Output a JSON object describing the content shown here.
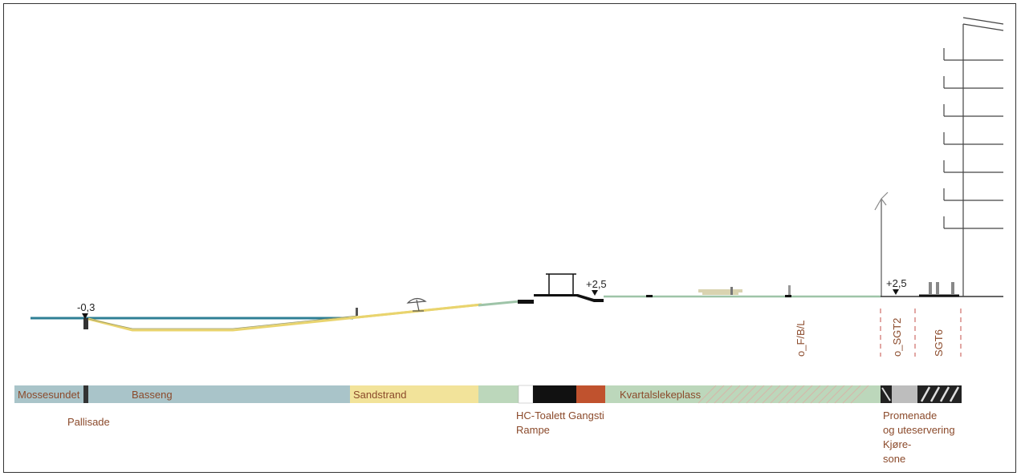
{
  "elevations": {
    "left": "-0,3",
    "toilet": "+2,5",
    "promenade": "+2,5"
  },
  "vertical_labels": {
    "park": "o_F/B/L",
    "promenade": "o_SGT2",
    "street": "SGT6"
  },
  "zones": [
    {
      "label": "Mossesundet",
      "color": "#a9c4c9"
    },
    {
      "label": "Basseng",
      "color": "#a9c4c9"
    },
    {
      "label": "Sandstrand",
      "color": "#f2e39a"
    },
    {
      "label": "Kvartalslekeplass",
      "color": "#bcd7bb"
    }
  ],
  "below_labels": {
    "pallisade": "Pallisade",
    "hc_rampe": "HC-Toalett Gangsti\nRampe",
    "promenade": "Promenade\nog uteservering\nKjøre-\nsone"
  },
  "colors": {
    "water": "#2f7f95",
    "sand": "#f2e39a",
    "grass": "#bcd7bb",
    "path": "#c0522e",
    "accent_dash": "#d98a86"
  }
}
